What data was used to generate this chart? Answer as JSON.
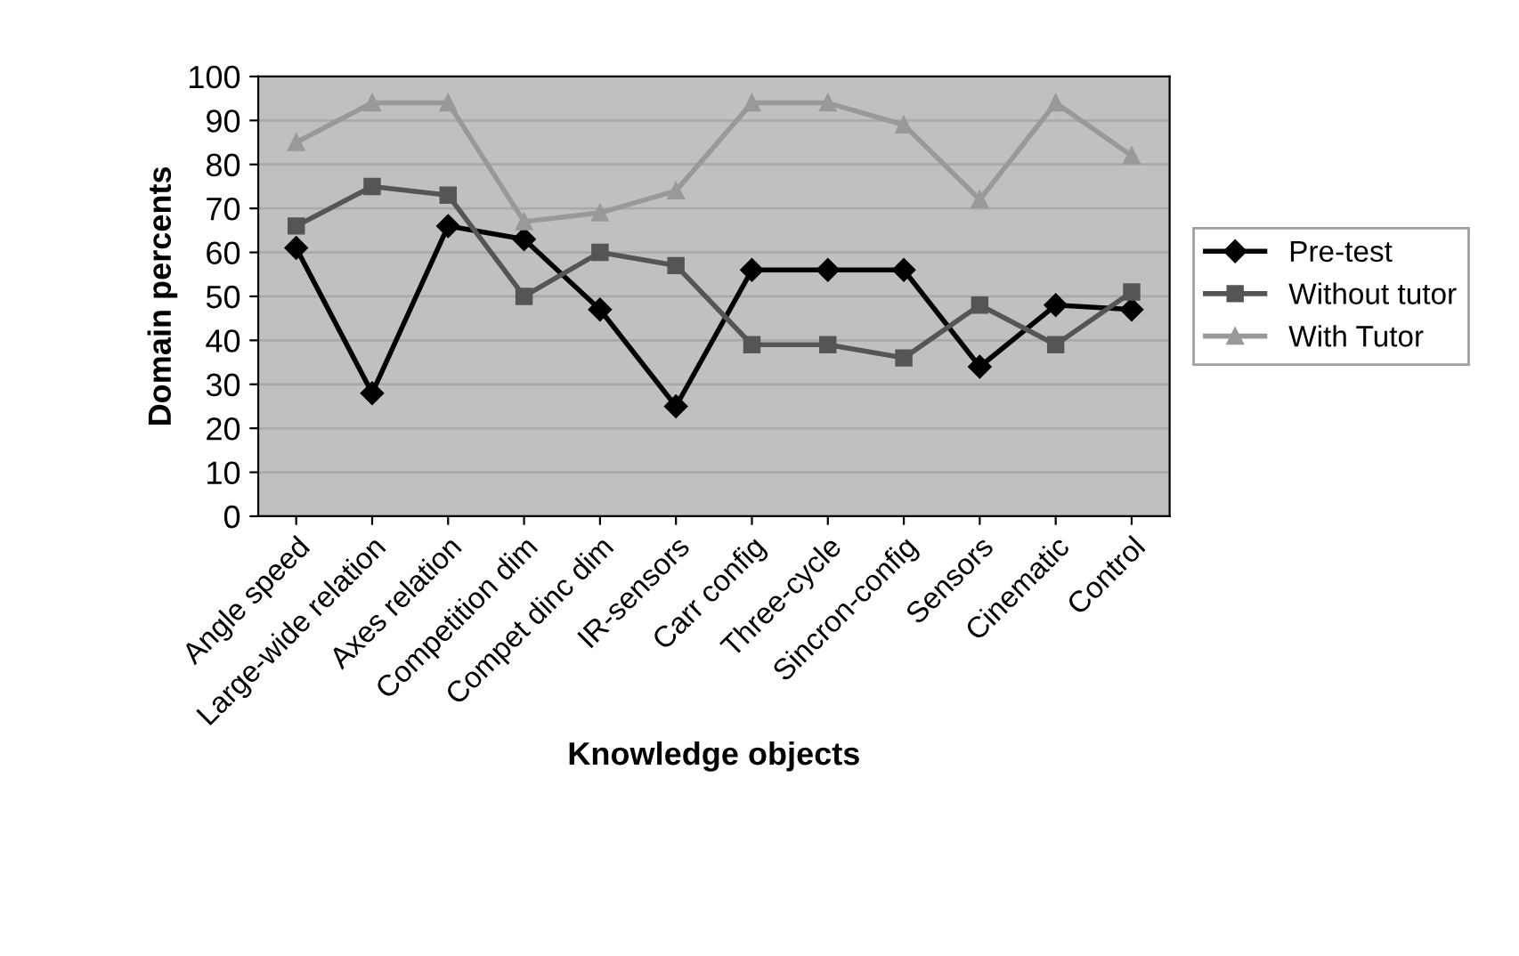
{
  "chart_data": {
    "type": "line",
    "xlabel": "Knowledge objects",
    "ylabel": "Domain percents",
    "categories": [
      "Angle speed",
      "Large-wide relation",
      "Axes relation",
      "Competition dim",
      "Compet dinc dim",
      "IR-sensors",
      "Carr config",
      "Three-cycle",
      "Sincron-config",
      "Sensors",
      "Cinematic",
      "Control"
    ],
    "series": [
      {
        "name": "Pre-test",
        "color": "#000000",
        "marker": "diamond",
        "values": [
          61,
          28,
          66,
          63,
          47,
          25,
          56,
          56,
          56,
          34,
          48,
          47
        ]
      },
      {
        "name": "Without tutor",
        "color": "#555555",
        "marker": "square",
        "values": [
          66,
          75,
          73,
          50,
          60,
          57,
          39,
          39,
          36,
          48,
          39,
          51
        ]
      },
      {
        "name": "With Tutor",
        "color": "#999999",
        "marker": "triangle",
        "values": [
          85,
          94,
          94,
          67,
          69,
          74,
          94,
          94,
          89,
          72,
          94,
          82
        ]
      }
    ],
    "ylim": [
      0,
      100
    ],
    "yticks": [
      0,
      10,
      20,
      30,
      40,
      50,
      60,
      70,
      80,
      90,
      100
    ],
    "grid": "y",
    "legend": "right"
  }
}
